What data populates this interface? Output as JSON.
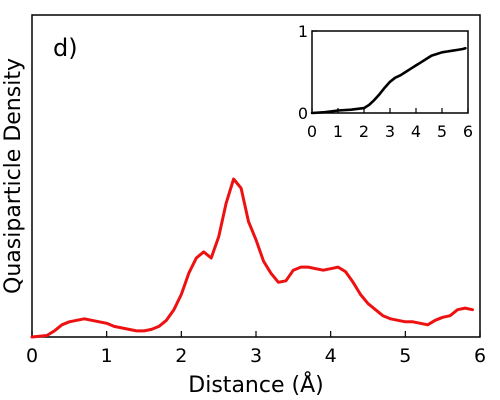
{
  "chart_data": [
    {
      "type": "line",
      "panel_label": "d)",
      "xlabel": "Distance (Å)",
      "ylabel": "Quasiparticle Density",
      "xlim": [
        0,
        6
      ],
      "ylim": [
        0,
        1.06
      ],
      "x_ticks": [
        "0",
        "1",
        "2",
        "3",
        "4",
        "5",
        "6"
      ],
      "y_ticks": [],
      "color": "#ee1111",
      "x": [
        0.0,
        0.2,
        0.3,
        0.4,
        0.5,
        0.6,
        0.7,
        0.8,
        0.9,
        1.0,
        1.1,
        1.2,
        1.3,
        1.4,
        1.5,
        1.6,
        1.7,
        1.8,
        1.9,
        2.0,
        2.1,
        2.2,
        2.3,
        2.4,
        2.5,
        2.6,
        2.7,
        2.8,
        2.9,
        3.0,
        3.1,
        3.2,
        3.3,
        3.4,
        3.5,
        3.6,
        3.7,
        3.8,
        3.9,
        4.0,
        4.1,
        4.2,
        4.3,
        4.4,
        4.5,
        4.6,
        4.7,
        4.8,
        4.9,
        5.0,
        5.1,
        5.2,
        5.3,
        5.4,
        5.5,
        5.6,
        5.7,
        5.8,
        5.9
      ],
      "values": [
        0.0,
        0.005,
        0.02,
        0.04,
        0.05,
        0.055,
        0.06,
        0.055,
        0.05,
        0.045,
        0.035,
        0.03,
        0.025,
        0.02,
        0.02,
        0.025,
        0.035,
        0.055,
        0.09,
        0.14,
        0.21,
        0.26,
        0.28,
        0.26,
        0.33,
        0.44,
        0.52,
        0.49,
        0.38,
        0.32,
        0.25,
        0.21,
        0.18,
        0.185,
        0.22,
        0.23,
        0.23,
        0.225,
        0.22,
        0.225,
        0.23,
        0.215,
        0.18,
        0.14,
        0.11,
        0.09,
        0.07,
        0.06,
        0.055,
        0.05,
        0.05,
        0.045,
        0.04,
        0.055,
        0.065,
        0.07,
        0.09,
        0.095,
        0.09
      ]
    },
    {
      "type": "line",
      "role": "inset",
      "xlim": [
        0,
        6
      ],
      "ylim": [
        0,
        1
      ],
      "x_ticks": [
        "0",
        "1",
        "2",
        "3",
        "4",
        "5",
        "6"
      ],
      "y_ticks": [
        "0",
        "1"
      ],
      "color": "#000000",
      "x": [
        0.0,
        0.5,
        1.0,
        1.5,
        2.0,
        2.2,
        2.4,
        2.6,
        2.8,
        3.0,
        3.2,
        3.4,
        3.6,
        3.8,
        4.0,
        4.2,
        4.4,
        4.6,
        4.8,
        5.0,
        5.2,
        5.4,
        5.6,
        5.8,
        5.9
      ],
      "values": [
        0.0,
        0.01,
        0.03,
        0.04,
        0.06,
        0.1,
        0.16,
        0.23,
        0.31,
        0.38,
        0.43,
        0.46,
        0.5,
        0.54,
        0.58,
        0.62,
        0.66,
        0.7,
        0.72,
        0.74,
        0.75,
        0.76,
        0.77,
        0.78,
        0.79
      ]
    }
  ]
}
